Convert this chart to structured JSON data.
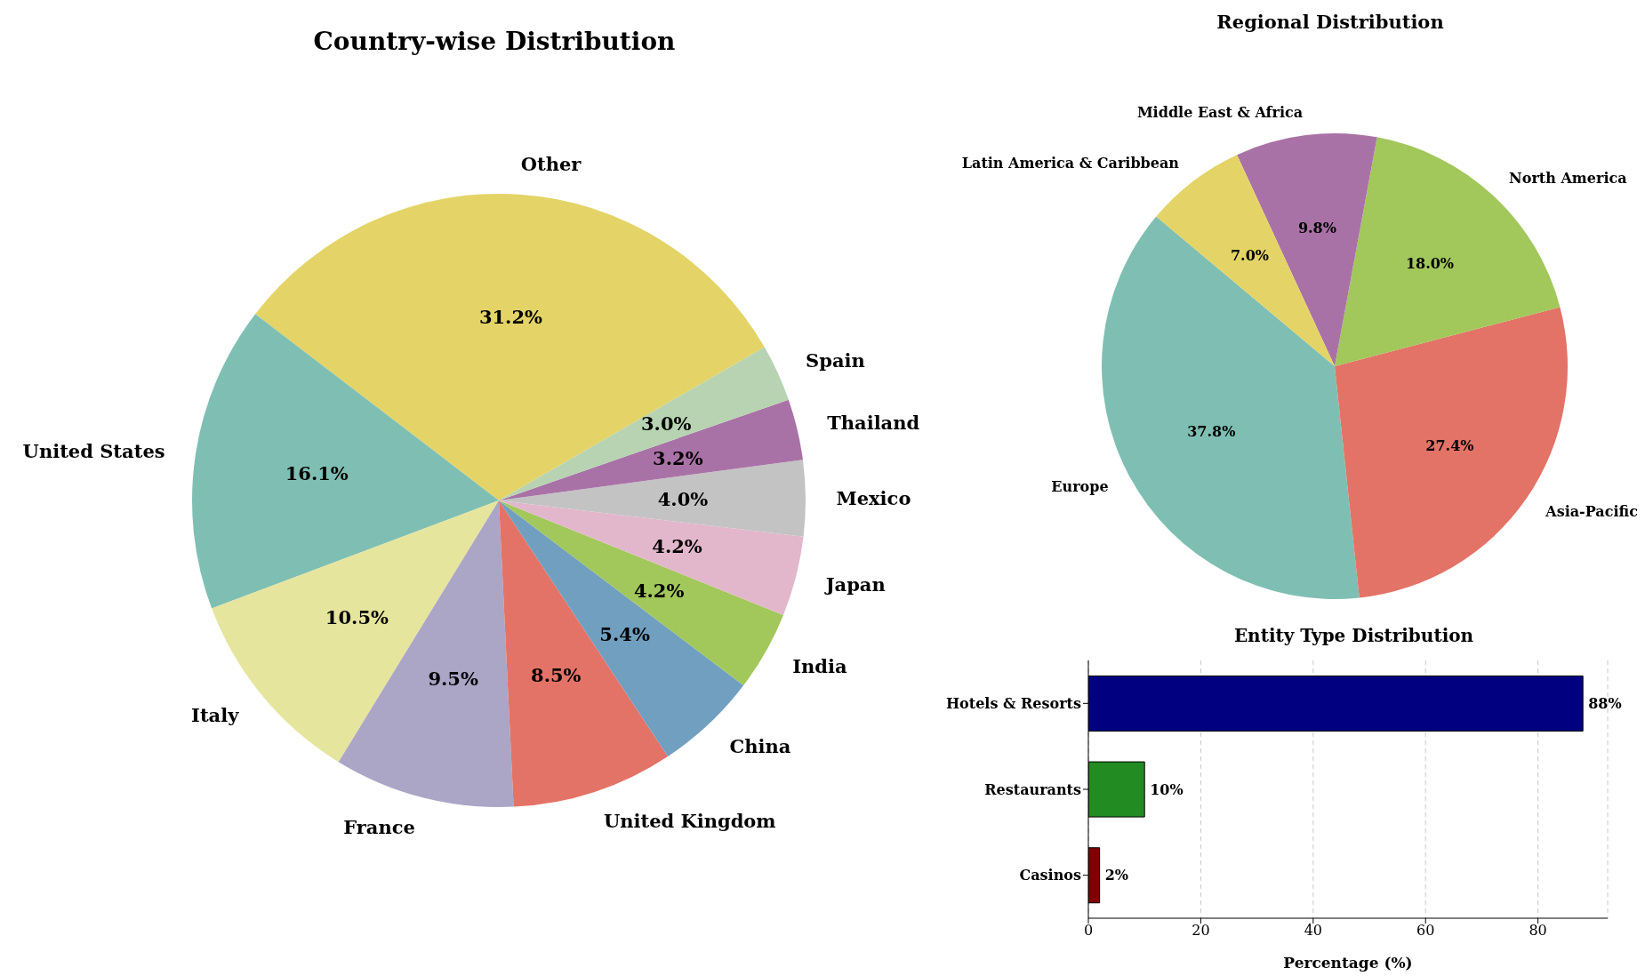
{
  "chart_data": [
    {
      "type": "pie",
      "title": "Country-wise Distribution",
      "categories": [
        "Other",
        "United States",
        "Italy",
        "France",
        "United Kingdom",
        "China",
        "India",
        "Japan",
        "Mexico",
        "Thailand",
        "Spain"
      ],
      "values": [
        31.2,
        16.1,
        10.5,
        9.5,
        8.5,
        5.4,
        4.2,
        4.2,
        4.0,
        3.2,
        3.0
      ],
      "value_labels": [
        "31.2%",
        "16.1%",
        "10.5%",
        "9.5%",
        "8.5%",
        "5.4%",
        "4.2%",
        "4.2%",
        "4.0%",
        "3.2%",
        "3.0%"
      ],
      "colors": [
        "#e4d467",
        "#7fbfb3",
        "#e6e59e",
        "#aba5c6",
        "#e37366",
        "#719fc0",
        "#a2c75b",
        "#e2b7cb",
        "#c3c3c3",
        "#a972a6",
        "#b7d3b2"
      ]
    },
    {
      "type": "pie",
      "title": "Regional Distribution",
      "categories": [
        "Europe",
        "Asia-Pacific",
        "North America",
        "Middle East & Africa",
        "Latin America & Caribbean"
      ],
      "values": [
        37.8,
        27.4,
        18.0,
        9.8,
        7.0
      ],
      "value_labels": [
        "37.8%",
        "27.4%",
        "18.0%",
        "9.8%",
        "7.0%"
      ],
      "colors": [
        "#7fbfb3",
        "#e37366",
        "#a2c75b",
        "#a972a6",
        "#e4d467"
      ]
    },
    {
      "type": "bar",
      "orientation": "horizontal",
      "title": "Entity Type Distribution",
      "xlabel": "Percentage (%)",
      "categories": [
        "Hotels & Resorts",
        "Restaurants",
        "Casinos"
      ],
      "values": [
        88,
        10,
        2
      ],
      "value_labels": [
        "88%",
        "10%",
        "2%"
      ],
      "colors": [
        "#000080",
        "#228b22",
        "#800000"
      ],
      "xlim": [
        0,
        92.4
      ],
      "xticks": [
        0,
        20,
        40,
        60,
        80
      ],
      "grid": "x"
    }
  ]
}
